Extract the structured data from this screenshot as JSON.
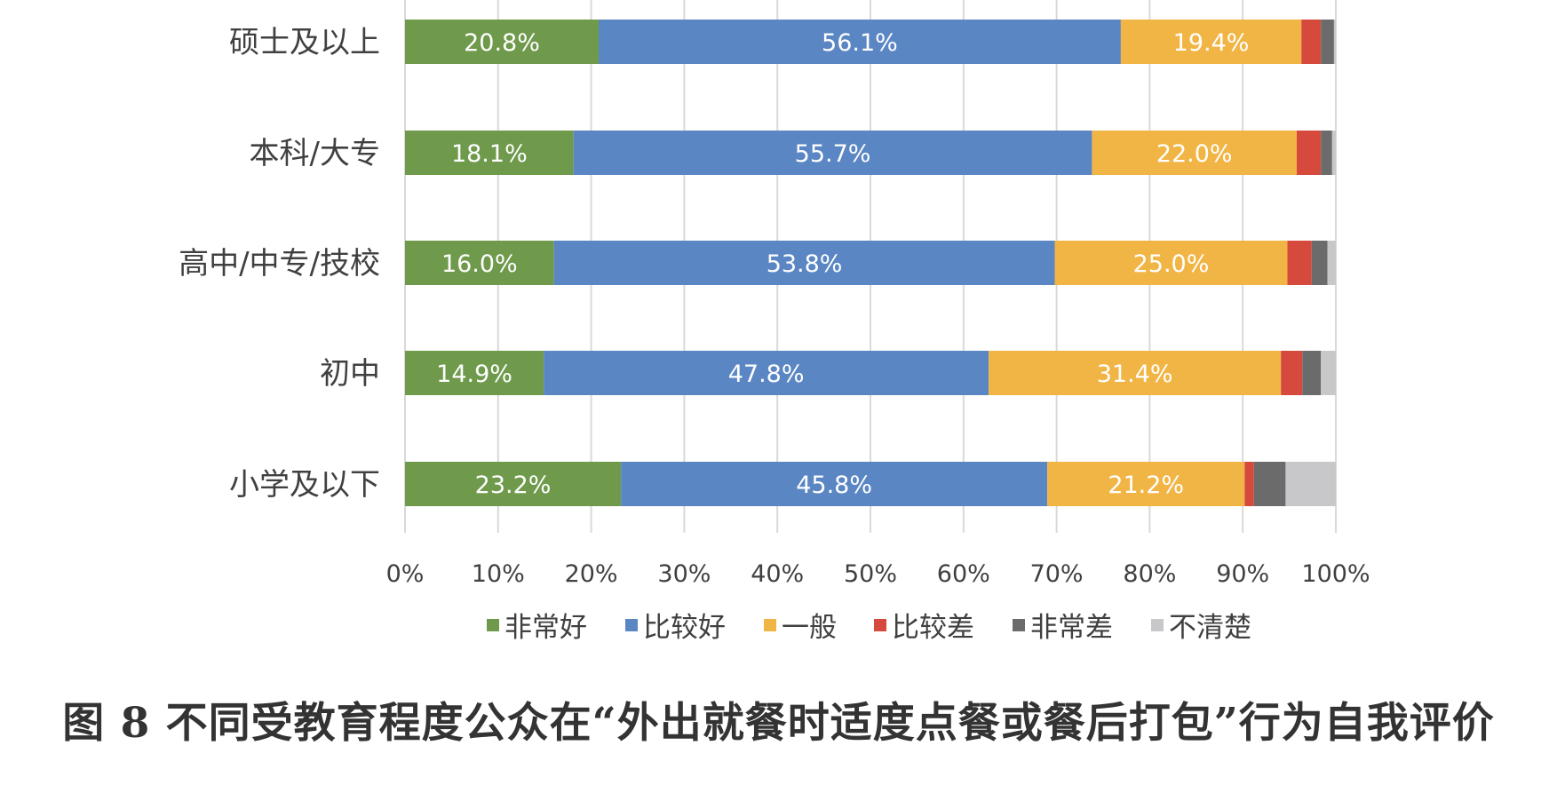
{
  "chart_data": {
    "type": "bar",
    "orientation": "horizontal",
    "stacked": true,
    "categories": [
      "硕士及以上",
      "本科/大专",
      "高中/中专/技校",
      "初中",
      "小学及以下"
    ],
    "series": [
      {
        "name": "非常好",
        "color": "#6f9a4c",
        "values": [
          20.8,
          18.1,
          16.0,
          14.9,
          23.2
        ],
        "labels": [
          "20.8%",
          "18.1%",
          "16.0%",
          "14.9%",
          "23.2%"
        ]
      },
      {
        "name": "比较好",
        "color": "#5b86c4",
        "values": [
          56.1,
          55.7,
          53.8,
          47.8,
          45.8
        ],
        "labels": [
          "56.1%",
          "55.7%",
          "53.8%",
          "47.8%",
          "45.8%"
        ]
      },
      {
        "name": "一般",
        "color": "#f1b545",
        "values": [
          19.4,
          22.0,
          25.0,
          31.4,
          21.2
        ],
        "labels": [
          "19.4%",
          "22.0%",
          "25.0%",
          "31.4%",
          "21.2%"
        ]
      },
      {
        "name": "比较差",
        "color": "#d64a3e",
        "values": [
          2.1,
          2.6,
          2.6,
          2.3,
          1.0
        ],
        "labels": [
          "",
          "",
          "",
          "",
          ""
        ]
      },
      {
        "name": "非常差",
        "color": "#6b6b6b",
        "values": [
          1.4,
          1.2,
          1.7,
          2.0,
          3.4
        ],
        "labels": [
          "",
          "",
          "",
          "",
          ""
        ]
      },
      {
        "name": "不清楚",
        "color": "#c8c8ca",
        "values": [
          0.2,
          0.4,
          0.9,
          1.6,
          5.4
        ],
        "labels": [
          "",
          "",
          "",
          "",
          ""
        ]
      }
    ],
    "xlim": [
      0,
      100
    ],
    "x_ticks": [
      "0%",
      "10%",
      "20%",
      "30%",
      "40%",
      "50%",
      "60%",
      "70%",
      "80%",
      "90%",
      "100%"
    ],
    "grid": "vertical",
    "legend_position": "bottom",
    "gridline_color": "#d9d9d9"
  },
  "caption": "图 8 不同受教育程度公众在“外出就餐时适度点餐或餐后打包”行为自我评价"
}
